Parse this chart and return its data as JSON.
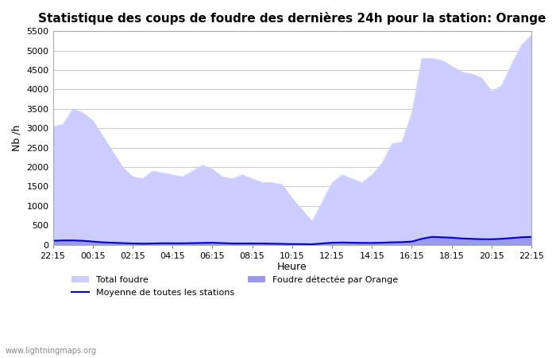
{
  "title": "Statistique des coups de foudre des dernières 24h pour la station: Orange",
  "xlabel": "Heure",
  "ylabel": "Nb /h",
  "xlim_labels": [
    "22:15",
    "00:15",
    "02:15",
    "04:15",
    "06:15",
    "08:15",
    "10:15",
    "12:15",
    "14:15",
    "16:15",
    "18:15",
    "20:15",
    "22:15"
  ],
  "ylim": [
    0,
    5500
  ],
  "yticks": [
    0,
    500,
    1000,
    1500,
    2000,
    2500,
    3000,
    3500,
    4000,
    4500,
    5000,
    5500
  ],
  "background_color": "#ffffff",
  "plot_bg_color": "#ffffff",
  "total_foudre_color": "#ccccff",
  "orange_foudre_color": "#9999ee",
  "moyenne_color": "#0000cc",
  "watermark": "www.lightningmaps.org",
  "time_points": [
    0,
    1,
    2,
    3,
    4,
    5,
    6,
    7,
    8,
    9,
    10,
    11,
    12,
    13,
    14,
    15,
    16,
    17,
    18,
    19,
    20,
    21,
    22,
    23,
    24,
    25,
    26,
    27,
    28,
    29,
    30,
    31,
    32,
    33,
    34,
    35,
    36,
    37,
    38,
    39,
    40,
    41,
    42,
    43,
    44,
    45,
    46,
    47,
    48
  ],
  "total_foudre": [
    3050,
    3100,
    3500,
    3400,
    3200,
    2800,
    2400,
    2000,
    1750,
    1700,
    1900,
    1850,
    1800,
    1750,
    1900,
    2050,
    1950,
    1750,
    1700,
    1800,
    1700,
    1600,
    1600,
    1550,
    1200,
    900,
    600,
    1100,
    1600,
    1800,
    1700,
    1600,
    1800,
    2100,
    2600,
    2650,
    3400,
    4800,
    4800,
    4750,
    4600,
    4450,
    4400,
    4300,
    3950,
    4100,
    4650,
    5150,
    5400
  ],
  "orange_foudre": [
    100,
    110,
    110,
    100,
    80,
    60,
    50,
    40,
    30,
    25,
    30,
    35,
    35,
    35,
    40,
    45,
    50,
    40,
    30,
    30,
    30,
    30,
    25,
    20,
    15,
    15,
    10,
    30,
    50,
    55,
    50,
    45,
    45,
    50,
    60,
    65,
    80,
    150,
    200,
    190,
    180,
    160,
    150,
    140,
    140,
    150,
    170,
    190,
    200
  ],
  "moyenne": [
    100,
    108,
    110,
    100,
    80,
    60,
    50,
    40,
    30,
    25,
    30,
    35,
    35,
    35,
    40,
    45,
    50,
    40,
    30,
    30,
    30,
    30,
    25,
    20,
    15,
    15,
    10,
    30,
    50,
    55,
    50,
    45,
    45,
    50,
    60,
    65,
    80,
    150,
    200,
    190,
    180,
    160,
    150,
    140,
    140,
    150,
    170,
    190,
    200
  ]
}
